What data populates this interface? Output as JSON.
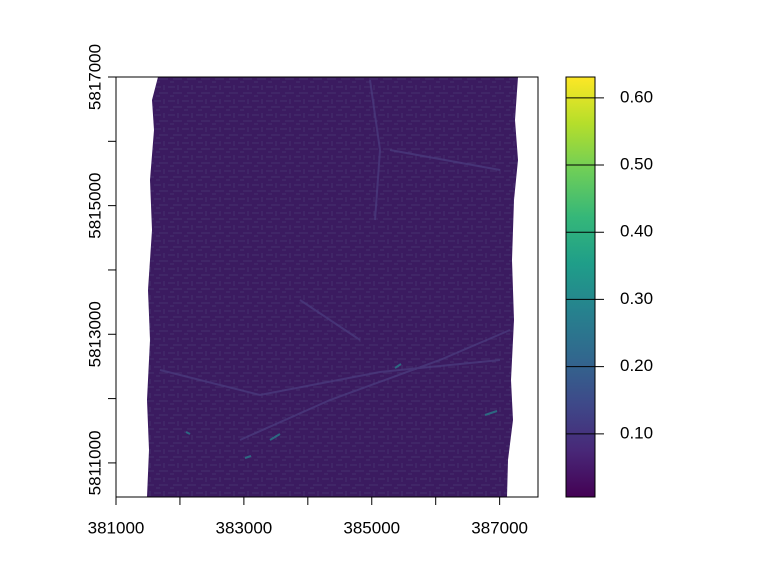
{
  "chart_data": {
    "type": "raster",
    "xlim": [
      381000,
      387600
    ],
    "ylim": [
      5810470,
      5817000
    ],
    "xticks": [
      381000,
      383000,
      385000,
      387000
    ],
    "yticks": [
      5811000,
      5813000,
      5815000,
      5817000
    ],
    "xminorticks": [
      382000,
      384000,
      386000
    ],
    "yminorticks": [
      5812000,
      5814000,
      5816000
    ],
    "colorbar": {
      "lim": [
        0.006,
        0.631
      ],
      "ticks": [
        {
          "value": 0.1,
          "label": "0.10"
        },
        {
          "value": 0.2,
          "label": "0.20"
        },
        {
          "value": 0.3,
          "label": "0.30"
        },
        {
          "value": 0.4,
          "label": "0.40"
        },
        {
          "value": 0.5,
          "label": "0.50"
        },
        {
          "value": 0.6,
          "label": "0.60"
        }
      ],
      "colormap": [
        "#440154",
        "#482878",
        "#3e4989",
        "#31688e",
        "#26828e",
        "#1f9e89",
        "#35b779",
        "#6ece58",
        "#b5de2b",
        "#fde725"
      ]
    }
  }
}
